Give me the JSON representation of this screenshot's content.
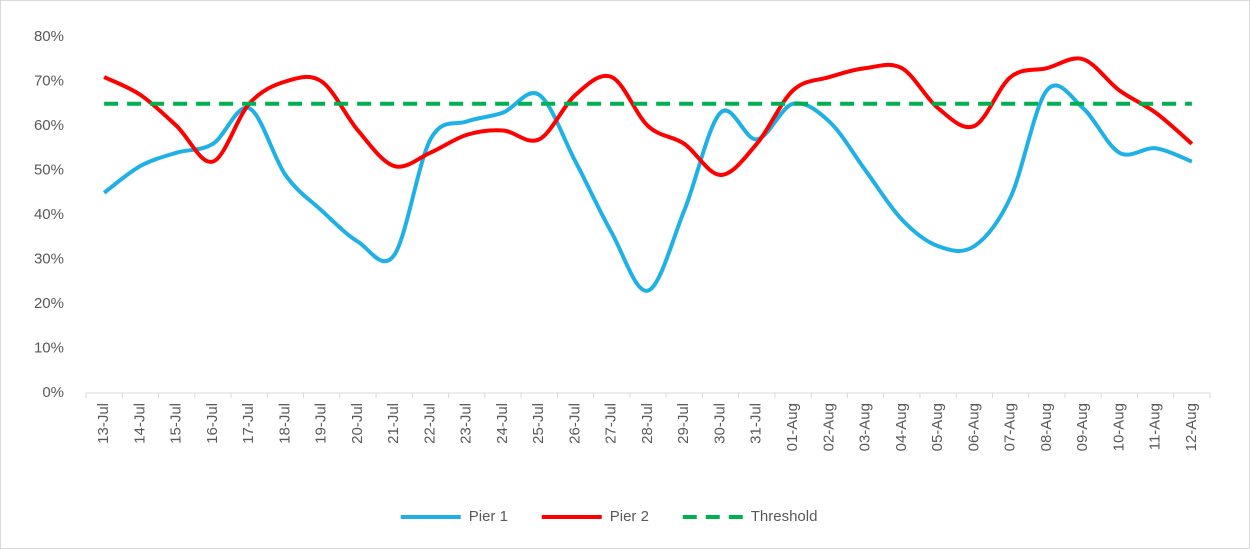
{
  "chart_data": {
    "type": "line",
    "categories": [
      "13-Jul",
      "14-Jul",
      "15-Jul",
      "16-Jul",
      "17-Jul",
      "18-Jul",
      "19-Jul",
      "20-Jul",
      "21-Jul",
      "22-Jul",
      "23-Jul",
      "24-Jul",
      "25-Jul",
      "26-Jul",
      "27-Jul",
      "28-Jul",
      "29-Jul",
      "30-Jul",
      "31-Jul",
      "01-Aug",
      "02-Aug",
      "03-Aug",
      "04-Aug",
      "05-Aug",
      "06-Aug",
      "07-Aug",
      "08-Aug",
      "09-Aug",
      "10-Aug",
      "11-Aug",
      "12-Aug"
    ],
    "series": [
      {
        "name": "Pier 1",
        "color": "#1fb1e6",
        "dashed": false,
        "values": [
          45,
          51,
          54,
          56,
          64,
          49,
          41,
          34,
          31,
          57,
          61,
          63,
          67,
          52,
          36,
          23,
          41,
          63,
          57,
          65,
          61,
          50,
          39,
          33,
          33,
          44,
          68,
          64,
          54,
          55,
          52
        ]
      },
      {
        "name": "Pier 2",
        "color": "#ff0000",
        "dashed": false,
        "values": [
          71,
          67,
          60,
          52,
          65,
          70,
          70,
          59,
          51,
          54,
          58,
          59,
          57,
          67,
          71,
          60,
          56,
          49,
          56,
          68,
          71,
          73,
          73,
          64,
          60,
          71,
          73,
          75,
          68,
          63,
          56
        ]
      },
      {
        "name": "Threshold",
        "color": "#00b050",
        "dashed": true,
        "values": [
          65,
          65,
          65,
          65,
          65,
          65,
          65,
          65,
          65,
          65,
          65,
          65,
          65,
          65,
          65,
          65,
          65,
          65,
          65,
          65,
          65,
          65,
          65,
          65,
          65,
          65,
          65,
          65,
          65,
          65,
          65
        ]
      }
    ],
    "ylim": [
      0,
      80
    ],
    "yticks": [
      {
        "value": 0,
        "label": "0%"
      },
      {
        "value": 10,
        "label": "10%"
      },
      {
        "value": 20,
        "label": "20%"
      },
      {
        "value": 30,
        "label": "30%"
      },
      {
        "value": 40,
        "label": "40%"
      },
      {
        "value": 50,
        "label": "50%"
      },
      {
        "value": 60,
        "label": "60%"
      },
      {
        "value": 70,
        "label": "70%"
      },
      {
        "value": 80,
        "label": "80%"
      }
    ],
    "smooth": true,
    "grid": false,
    "legend": "bottom"
  }
}
